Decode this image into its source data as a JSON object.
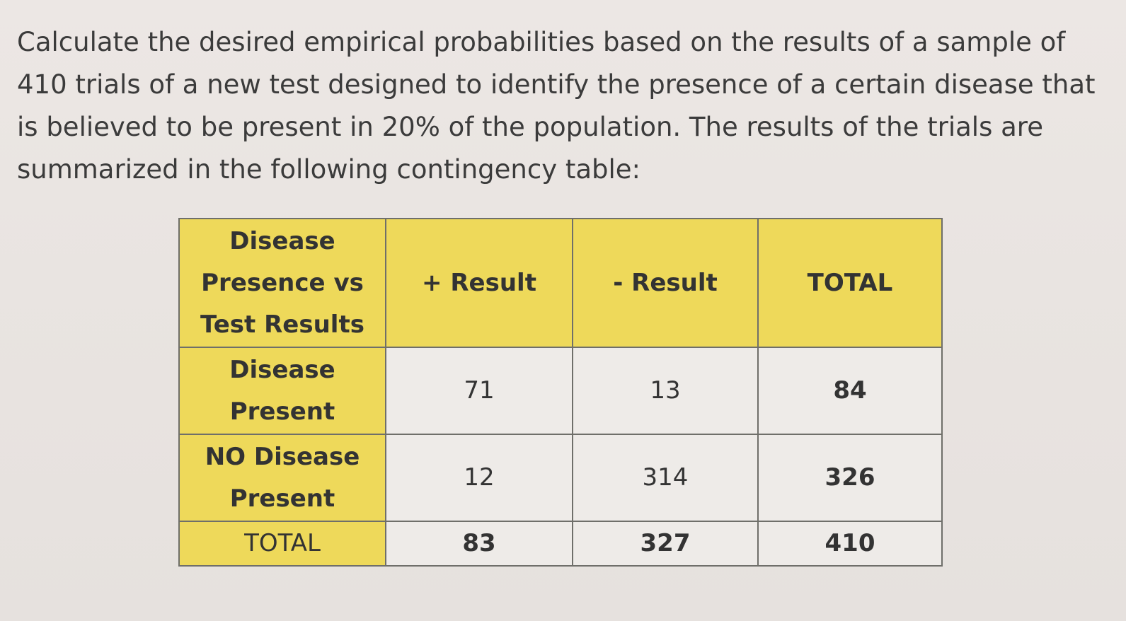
{
  "prompt_text": "Calculate the desired empirical probabilities based on the results of a sample of 410 trials of a new test designed to identify the presence of a certain disease that is believed to be present in 20% of the population. The results of the trials are summarized in the following contingency table:",
  "table": {
    "corner_label": "Disease\nPresence vs\nTest Results",
    "headers": [
      "+ Result",
      "- Result",
      "TOTAL"
    ],
    "rows": [
      {
        "label": "Disease\nPresent",
        "values": [
          "71",
          "13",
          "84"
        ]
      },
      {
        "label": "NO Disease\nPresent",
        "values": [
          "12",
          "314",
          "326"
        ]
      },
      {
        "label": "TOTAL",
        "values": [
          "83",
          "327",
          "410"
        ]
      }
    ]
  },
  "colors": {
    "header_fill": "#eed95a",
    "cell_fill": "#eeebe8",
    "border": "#6f6f6a",
    "background": "#e9e4e1"
  }
}
